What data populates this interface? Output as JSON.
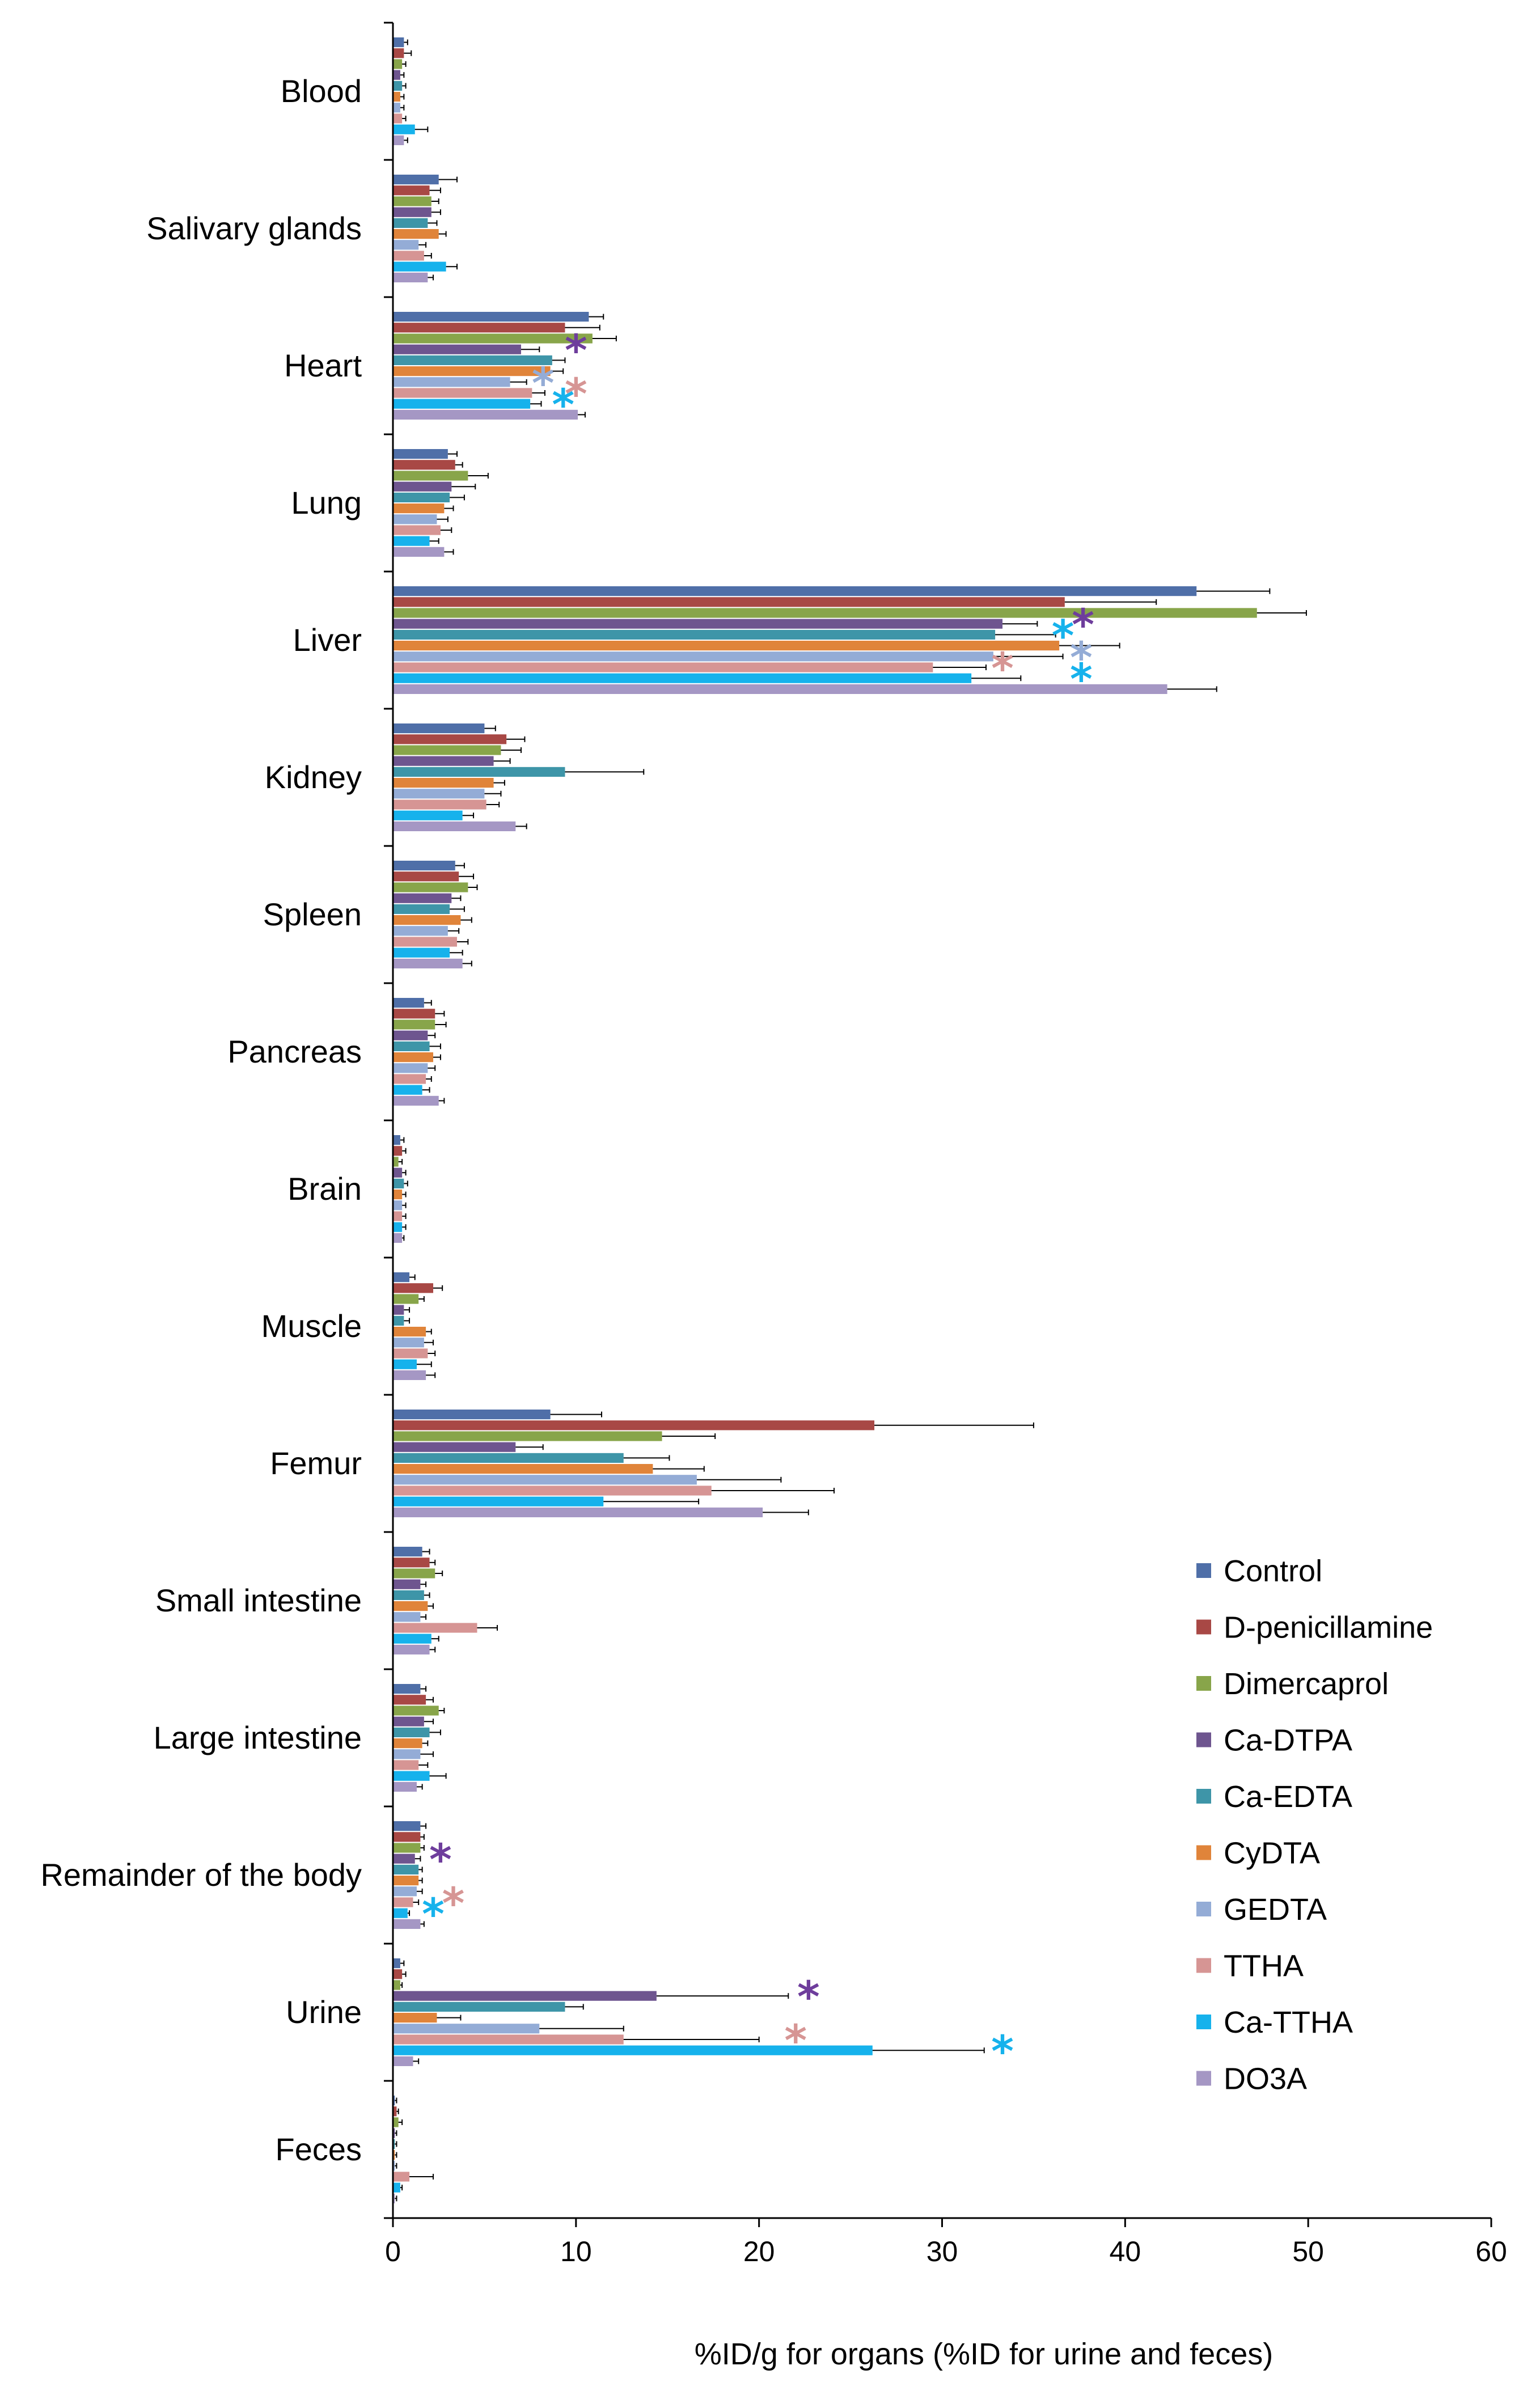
{
  "chart_data": {
    "type": "bar",
    "orientation": "horizontal",
    "title": "",
    "xlabel": "%ID/g for organs (%ID for urine and feces)",
    "ylabel": "",
    "xlim": [
      0,
      60
    ],
    "xticks": [
      0,
      10,
      20,
      30,
      40,
      50,
      60
    ],
    "grid": false,
    "legend_position": "right",
    "categories": [
      "Blood",
      "Salivary glands",
      "Heart",
      "Lung",
      "Liver",
      "Kidney",
      "Spleen",
      "Pancreas",
      "Brain",
      "Muscle",
      "Femur",
      "Small intestine",
      "Large intestine",
      "Remainder of the body",
      "Urine",
      "Feces"
    ],
    "series": [
      {
        "name": "Control",
        "color": "#4F6FA8",
        "values": [
          0.6,
          2.5,
          10.7,
          3.0,
          43.9,
          5.0,
          3.4,
          1.7,
          0.4,
          0.9,
          8.6,
          1.6,
          1.5,
          1.5,
          0.4,
          0.1
        ],
        "errors": [
          0.2,
          1.0,
          0.8,
          0.5,
          4.0,
          0.6,
          0.5,
          0.4,
          0.2,
          0.3,
          2.8,
          0.4,
          0.3,
          0.3,
          0.2,
          0.1
        ]
      },
      {
        "name": "D-penicillamine",
        "color": "#A84845",
        "values": [
          0.6,
          2.0,
          9.4,
          3.4,
          36.7,
          6.2,
          3.6,
          2.3,
          0.5,
          2.2,
          26.3,
          2.0,
          1.8,
          1.5,
          0.5,
          0.2
        ],
        "errors": [
          0.4,
          0.6,
          1.9,
          0.4,
          5.0,
          1.0,
          0.8,
          0.5,
          0.2,
          0.5,
          8.7,
          0.3,
          0.4,
          0.2,
          0.2,
          0.1
        ]
      },
      {
        "name": "Dimercaprol",
        "color": "#88A54A",
        "values": [
          0.5,
          2.1,
          10.9,
          4.1,
          47.2,
          5.9,
          4.1,
          2.3,
          0.3,
          1.4,
          14.7,
          2.3,
          2.5,
          1.5,
          0.4,
          0.3
        ],
        "errors": [
          0.2,
          0.4,
          1.3,
          1.1,
          2.7,
          1.1,
          0.5,
          0.6,
          0.2,
          0.3,
          2.9,
          0.4,
          0.3,
          0.2,
          0.1,
          0.2
        ]
      },
      {
        "name": "Ca-DTPA",
        "color": "#6E558F",
        "values": [
          0.4,
          2.1,
          7.0,
          3.2,
          33.3,
          5.5,
          3.2,
          1.9,
          0.5,
          0.6,
          6.7,
          1.5,
          1.7,
          1.2,
          14.4,
          0.1
        ],
        "errors": [
          0.2,
          0.5,
          1.0,
          1.3,
          1.9,
          0.9,
          0.5,
          0.4,
          0.2,
          0.3,
          1.5,
          0.3,
          0.5,
          0.3,
          7.2,
          0.1
        ]
      },
      {
        "name": "Ca-EDTA",
        "color": "#3E95A8",
        "values": [
          0.5,
          1.9,
          8.7,
          3.1,
          32.9,
          9.4,
          3.1,
          2.0,
          0.6,
          0.6,
          12.6,
          1.7,
          2.0,
          1.4,
          9.4,
          0.1
        ],
        "errors": [
          0.2,
          0.5,
          0.7,
          0.8,
          3.3,
          4.3,
          0.8,
          0.6,
          0.2,
          0.3,
          2.5,
          0.3,
          0.6,
          0.2,
          1.0,
          0.1
        ]
      },
      {
        "name": "CyDTA",
        "color": "#E0843A",
        "values": [
          0.4,
          2.5,
          8.6,
          2.8,
          36.4,
          5.5,
          3.7,
          2.2,
          0.5,
          1.8,
          14.2,
          1.9,
          1.6,
          1.4,
          2.4,
          0.1
        ],
        "errors": [
          0.2,
          0.4,
          0.7,
          0.5,
          3.3,
          0.6,
          0.6,
          0.4,
          0.2,
          0.3,
          2.8,
          0.3,
          0.3,
          0.2,
          1.3,
          0.1
        ]
      },
      {
        "name": "GEDTA",
        "color": "#94ACD6",
        "values": [
          0.4,
          1.4,
          6.4,
          2.4,
          32.8,
          5.0,
          3.0,
          1.9,
          0.5,
          1.7,
          16.6,
          1.5,
          1.5,
          1.3,
          8.0,
          0.1
        ],
        "errors": [
          0.2,
          0.4,
          0.9,
          0.6,
          3.8,
          0.9,
          0.6,
          0.4,
          0.2,
          0.5,
          4.6,
          0.3,
          0.7,
          0.3,
          4.6,
          0.1
        ]
      },
      {
        "name": "TTHA",
        "color": "#D69594",
        "values": [
          0.5,
          1.7,
          7.6,
          2.6,
          29.5,
          5.1,
          3.5,
          1.8,
          0.5,
          1.9,
          17.4,
          4.6,
          1.4,
          1.1,
          12.6,
          0.9
        ],
        "errors": [
          0.2,
          0.4,
          0.7,
          0.6,
          2.9,
          0.7,
          0.6,
          0.3,
          0.2,
          0.4,
          6.7,
          1.1,
          0.5,
          0.3,
          7.4,
          1.3
        ]
      },
      {
        "name": "Ca-TTHA",
        "color": "#16B2EC",
        "values": [
          1.2,
          2.9,
          7.5,
          2.0,
          31.6,
          3.8,
          3.1,
          1.6,
          0.5,
          1.3,
          11.5,
          2.1,
          2.0,
          0.8,
          26.2,
          0.4
        ],
        "errors": [
          0.7,
          0.6,
          0.6,
          0.5,
          2.7,
          0.6,
          0.7,
          0.4,
          0.2,
          0.8,
          5.2,
          0.4,
          0.9,
          0.1,
          6.1,
          0.1
        ]
      },
      {
        "name": "DO3A",
        "color": "#A597C4",
        "values": [
          0.6,
          1.9,
          10.1,
          2.8,
          42.3,
          6.7,
          3.8,
          2.5,
          0.5,
          1.8,
          20.2,
          2.0,
          1.3,
          1.5,
          1.1,
          0.1
        ],
        "errors": [
          0.2,
          0.3,
          0.4,
          0.5,
          2.7,
          0.6,
          0.5,
          0.3,
          0.1,
          0.5,
          2.5,
          0.3,
          0.3,
          0.2,
          0.3,
          0.1
        ]
      }
    ],
    "significance_marks": [
      {
        "category": "Heart",
        "series": "Ca-DTPA",
        "at": 10.0,
        "symbol": "*",
        "color": "#6E3D9C"
      },
      {
        "category": "Heart",
        "series": "GEDTA",
        "at": 8.2,
        "symbol": "*",
        "color": "#94ACD6"
      },
      {
        "category": "Heart",
        "series": "TTHA",
        "at": 10.0,
        "symbol": "*",
        "color": "#D69594"
      },
      {
        "category": "Heart",
        "series": "Ca-TTHA",
        "at": 9.3,
        "symbol": "*",
        "color": "#16B2EC"
      },
      {
        "category": "Liver",
        "series": "Ca-DTPA",
        "at": 37.7,
        "symbol": "*",
        "color": "#6E3D9C"
      },
      {
        "category": "Liver",
        "series": "Ca-EDTA",
        "at": 36.6,
        "symbol": "*",
        "color": "#16B2EC"
      },
      {
        "category": "Liver",
        "series": "GEDTA",
        "at": 37.6,
        "symbol": "*",
        "color": "#94ACD6"
      },
      {
        "category": "Liver",
        "series": "TTHA",
        "at": 33.3,
        "symbol": "*",
        "color": "#D69594"
      },
      {
        "category": "Liver",
        "series": "Ca-TTHA",
        "at": 37.6,
        "symbol": "*",
        "color": "#16B2EC"
      },
      {
        "category": "Remainder of the body",
        "series": "Ca-DTPA",
        "at": 2.6,
        "symbol": "*",
        "color": "#6E3D9C"
      },
      {
        "category": "Remainder of the body",
        "series": "TTHA",
        "at": 3.3,
        "symbol": "*",
        "color": "#D69594"
      },
      {
        "category": "Remainder of the body",
        "series": "Ca-TTHA",
        "at": 2.2,
        "symbol": "*",
        "color": "#16B2EC"
      },
      {
        "category": "Urine",
        "series": "Ca-DTPA",
        "at": 22.7,
        "symbol": "*",
        "color": "#6E3D9C"
      },
      {
        "category": "Urine",
        "series": "TTHA",
        "at": 22.0,
        "symbol": "*",
        "color": "#D69594"
      },
      {
        "category": "Urine",
        "series": "Ca-TTHA",
        "at": 33.3,
        "symbol": "*",
        "color": "#16B2EC"
      }
    ]
  }
}
